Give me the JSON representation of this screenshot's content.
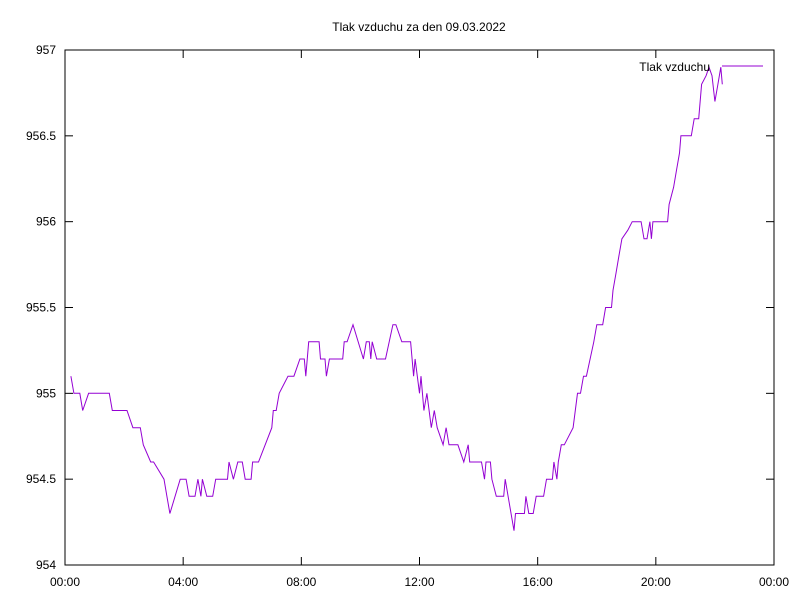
{
  "chart_data": {
    "type": "line",
    "title": "Tlak vzduchu za den 09.03.2022",
    "xlabel": "",
    "ylabel": "",
    "x_unit": "hours",
    "xlim": [
      0,
      24
    ],
    "ylim": [
      954,
      957
    ],
    "x_ticks": [
      0,
      4,
      8,
      12,
      16,
      20,
      24
    ],
    "x_tick_labels": [
      "00:00",
      "04:00",
      "08:00",
      "12:00",
      "16:00",
      "20:00",
      "00:00"
    ],
    "y_ticks": [
      954,
      954.5,
      955,
      955.5,
      956,
      956.5,
      957
    ],
    "y_tick_labels": [
      "954",
      "954.5",
      "955",
      "955.5",
      "956",
      "956.5",
      "957"
    ],
    "grid": false,
    "legend_position": "top-right",
    "series": [
      {
        "name": "Tlak vzduchu",
        "color": "#9400d3",
        "points": [
          [
            0.2,
            955.1
          ],
          [
            0.3,
            955.0
          ],
          [
            0.5,
            955.0
          ],
          [
            0.6,
            954.9
          ],
          [
            0.8,
            955.0
          ],
          [
            1.5,
            955.0
          ],
          [
            1.6,
            954.9
          ],
          [
            2.1,
            954.9
          ],
          [
            2.3,
            954.8
          ],
          [
            2.55,
            954.8
          ],
          [
            2.65,
            954.7
          ],
          [
            2.9,
            954.6
          ],
          [
            3.0,
            954.6
          ],
          [
            3.35,
            954.5
          ],
          [
            3.45,
            954.4
          ],
          [
            3.55,
            954.3
          ],
          [
            3.9,
            954.5
          ],
          [
            4.1,
            954.5
          ],
          [
            4.2,
            954.4
          ],
          [
            4.4,
            954.4
          ],
          [
            4.5,
            954.5
          ],
          [
            4.6,
            954.4
          ],
          [
            4.65,
            954.5
          ],
          [
            4.8,
            954.4
          ],
          [
            5.0,
            954.4
          ],
          [
            5.1,
            954.5
          ],
          [
            5.5,
            954.5
          ],
          [
            5.55,
            954.6
          ],
          [
            5.7,
            954.5
          ],
          [
            5.85,
            954.6
          ],
          [
            6.0,
            954.6
          ],
          [
            6.1,
            954.5
          ],
          [
            6.3,
            954.5
          ],
          [
            6.35,
            954.6
          ],
          [
            6.55,
            954.6
          ],
          [
            7.0,
            954.8
          ],
          [
            7.05,
            954.9
          ],
          [
            7.15,
            954.9
          ],
          [
            7.25,
            955.0
          ],
          [
            7.55,
            955.1
          ],
          [
            7.75,
            955.1
          ],
          [
            7.95,
            955.2
          ],
          [
            8.1,
            955.2
          ],
          [
            8.15,
            955.1
          ],
          [
            8.25,
            955.3
          ],
          [
            8.6,
            955.3
          ],
          [
            8.65,
            955.2
          ],
          [
            8.8,
            955.2
          ],
          [
            8.85,
            955.1
          ],
          [
            8.95,
            955.2
          ],
          [
            9.4,
            955.2
          ],
          [
            9.45,
            955.3
          ],
          [
            9.55,
            955.3
          ],
          [
            9.75,
            955.4
          ],
          [
            10.1,
            955.2
          ],
          [
            10.2,
            955.3
          ],
          [
            10.3,
            955.3
          ],
          [
            10.35,
            955.2
          ],
          [
            10.4,
            955.3
          ],
          [
            10.55,
            955.2
          ],
          [
            10.85,
            955.2
          ],
          [
            11.1,
            955.4
          ],
          [
            11.2,
            955.4
          ],
          [
            11.4,
            955.3
          ],
          [
            11.7,
            955.3
          ],
          [
            11.75,
            955.2
          ],
          [
            11.8,
            955.1
          ],
          [
            11.85,
            955.2
          ],
          [
            12.0,
            955.0
          ],
          [
            12.05,
            955.1
          ],
          [
            12.15,
            954.9
          ],
          [
            12.25,
            955.0
          ],
          [
            12.4,
            954.8
          ],
          [
            12.5,
            954.9
          ],
          [
            12.6,
            954.8
          ],
          [
            12.8,
            954.7
          ],
          [
            12.9,
            954.8
          ],
          [
            13.0,
            954.7
          ],
          [
            13.3,
            954.7
          ],
          [
            13.5,
            954.6
          ],
          [
            13.65,
            954.7
          ],
          [
            13.7,
            954.6
          ],
          [
            14.1,
            954.6
          ],
          [
            14.2,
            954.5
          ],
          [
            14.25,
            954.6
          ],
          [
            14.4,
            954.6
          ],
          [
            14.45,
            954.5
          ],
          [
            14.6,
            954.4
          ],
          [
            14.85,
            954.4
          ],
          [
            14.9,
            954.5
          ],
          [
            15.0,
            954.4
          ],
          [
            15.2,
            954.2
          ],
          [
            15.25,
            954.3
          ],
          [
            15.55,
            954.3
          ],
          [
            15.6,
            954.4
          ],
          [
            15.7,
            954.3
          ],
          [
            15.85,
            954.3
          ],
          [
            15.95,
            954.4
          ],
          [
            16.2,
            954.4
          ],
          [
            16.3,
            954.5
          ],
          [
            16.4,
            954.5
          ],
          [
            16.5,
            954.5
          ],
          [
            16.55,
            954.6
          ],
          [
            16.65,
            954.5
          ],
          [
            16.7,
            954.6
          ],
          [
            16.8,
            954.7
          ],
          [
            16.9,
            954.7
          ],
          [
            17.2,
            954.8
          ],
          [
            17.35,
            955.0
          ],
          [
            17.45,
            955.0
          ],
          [
            17.55,
            955.1
          ],
          [
            17.65,
            955.1
          ],
          [
            17.9,
            955.3
          ],
          [
            18.0,
            955.4
          ],
          [
            18.2,
            955.4
          ],
          [
            18.3,
            955.5
          ],
          [
            18.5,
            955.5
          ],
          [
            18.55,
            955.6
          ],
          [
            18.65,
            955.7
          ],
          [
            18.75,
            955.8
          ],
          [
            18.85,
            955.9
          ],
          [
            19.05,
            955.95
          ],
          [
            19.2,
            956.0
          ],
          [
            19.5,
            956.0
          ],
          [
            19.6,
            955.9
          ],
          [
            19.7,
            955.9
          ],
          [
            19.8,
            956.0
          ],
          [
            19.85,
            955.9
          ],
          [
            19.9,
            956.0
          ],
          [
            20.4,
            956.0
          ],
          [
            20.45,
            956.1
          ],
          [
            20.6,
            956.2
          ],
          [
            20.7,
            956.3
          ],
          [
            20.8,
            956.4
          ],
          [
            20.85,
            956.5
          ],
          [
            21.2,
            956.5
          ],
          [
            21.3,
            956.6
          ],
          [
            21.45,
            956.6
          ],
          [
            21.55,
            956.8
          ],
          [
            21.7,
            956.85
          ],
          [
            21.8,
            956.9
          ],
          [
            21.9,
            956.85
          ],
          [
            22.0,
            956.7
          ],
          [
            22.1,
            956.8
          ],
          [
            22.2,
            956.9
          ],
          [
            22.25,
            956.8
          ]
        ]
      }
    ]
  }
}
